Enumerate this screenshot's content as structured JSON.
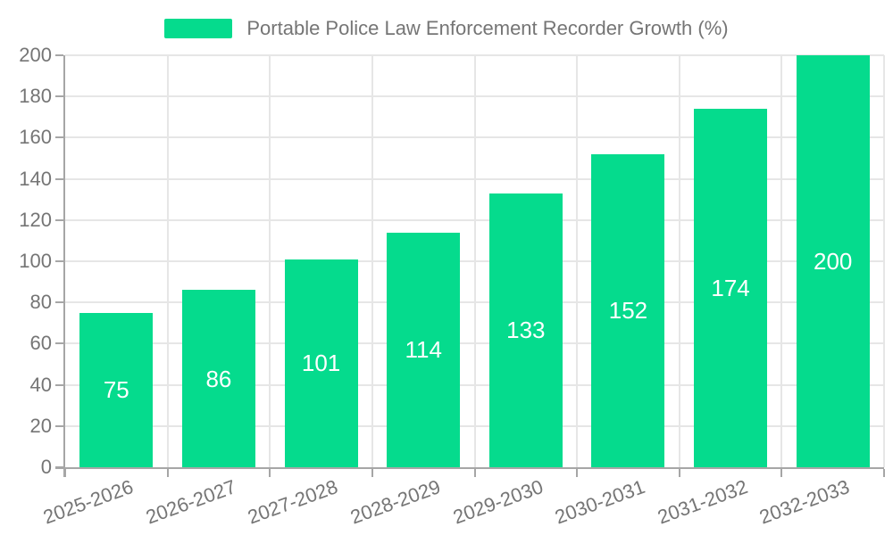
{
  "legend": {
    "label": "Portable Police Law Enforcement Recorder Growth (%)"
  },
  "colors": {
    "bar": "#05DB8D",
    "grid_line": "#e6e6e6",
    "axis_line": "#a6a6a6",
    "axis_text": "#757575",
    "value_label_text": "#ffffff",
    "background": "#ffffff"
  },
  "chart_data": {
    "type": "bar",
    "title": "Portable Police Law Enforcement Recorder Growth (%)",
    "categories": [
      "2025-2026",
      "2026-2027",
      "2027-2028",
      "2028-2029",
      "2029-2030",
      "2030-2031",
      "2031-2032",
      "2032-2033"
    ],
    "series": [
      {
        "name": "Portable Police Law Enforcement Recorder Growth (%)",
        "values": [
          75,
          86,
          101,
          114,
          133,
          152,
          174,
          200
        ]
      }
    ],
    "xlabel": "",
    "ylabel": "",
    "ylim": [
      0,
      200
    ],
    "ytick_step": 20,
    "grid": true,
    "legend_position": "top-center",
    "value_labels": "inside-middle",
    "x_tick_label_rotation_deg": 20
  }
}
